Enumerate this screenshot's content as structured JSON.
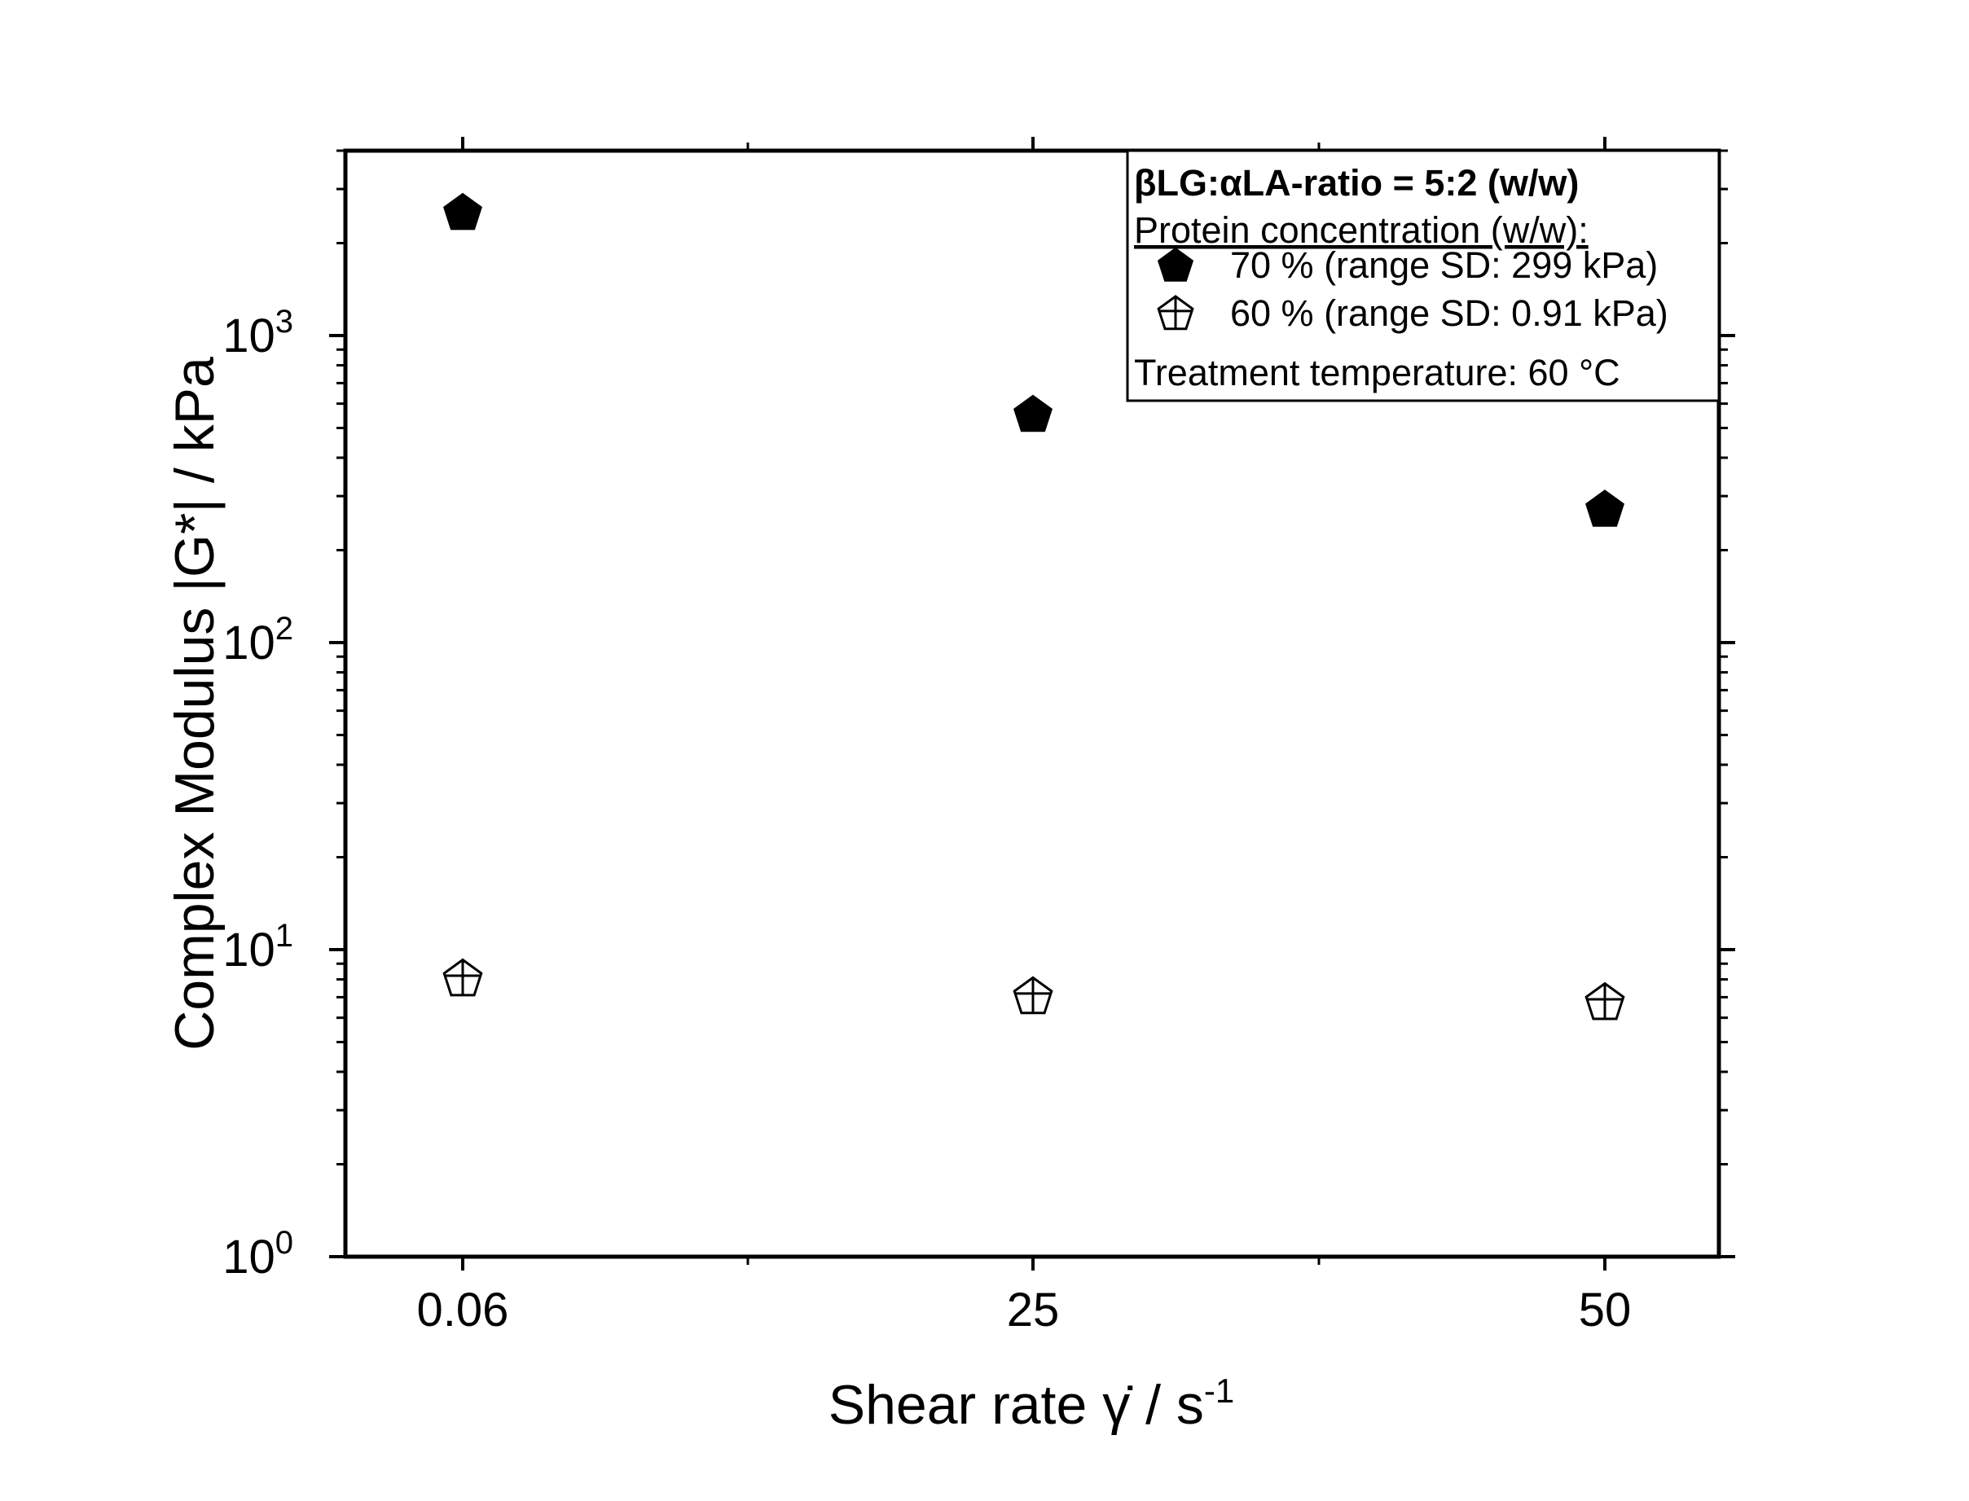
{
  "chart_data": {
    "type": "scatter",
    "x_scale": "categorical",
    "y_scale": "log",
    "categories": [
      "0.06",
      "25",
      "50"
    ],
    "xlabel": "Shear rate",
    "xlabel_symbol": "γ̇",
    "xlabel_unit": "/ s",
    "xlabel_unit_exp": "-1",
    "ylabel": "Complex Modulus |G*| / kPa",
    "ylim": [
      1,
      4000
    ],
    "y_ticks": [
      {
        "mantissa": "10",
        "exp": "0",
        "value": 1
      },
      {
        "mantissa": "10",
        "exp": "1",
        "value": 10
      },
      {
        "mantissa": "10",
        "exp": "2",
        "value": 100
      },
      {
        "mantissa": "10",
        "exp": "3",
        "value": 1000
      }
    ],
    "grid": false,
    "legend_position": "top-right",
    "legend": {
      "title": "βLG:αLA-ratio = 5:2 (w/w)",
      "subtitle": "Protein concentration (w/w):",
      "footer": "Treatment temperature: 60 °C",
      "entries": [
        {
          "series": "70 %",
          "label": "70 %  (range SD: 299 kPa)",
          "marker": "filled-pentagon"
        },
        {
          "series": "60 %",
          "label": "60 %  (range SD: 0.91 kPa)",
          "marker": "open-crossed-pentagon"
        }
      ]
    },
    "series": [
      {
        "name": "70 %",
        "marker": "filled-pentagon",
        "color": "#000000",
        "values": [
          2500,
          550,
          270
        ]
      },
      {
        "name": "60 %",
        "marker": "open-crossed-pentagon",
        "color": "#000000",
        "values": [
          8.0,
          7.0,
          6.7
        ]
      }
    ]
  }
}
